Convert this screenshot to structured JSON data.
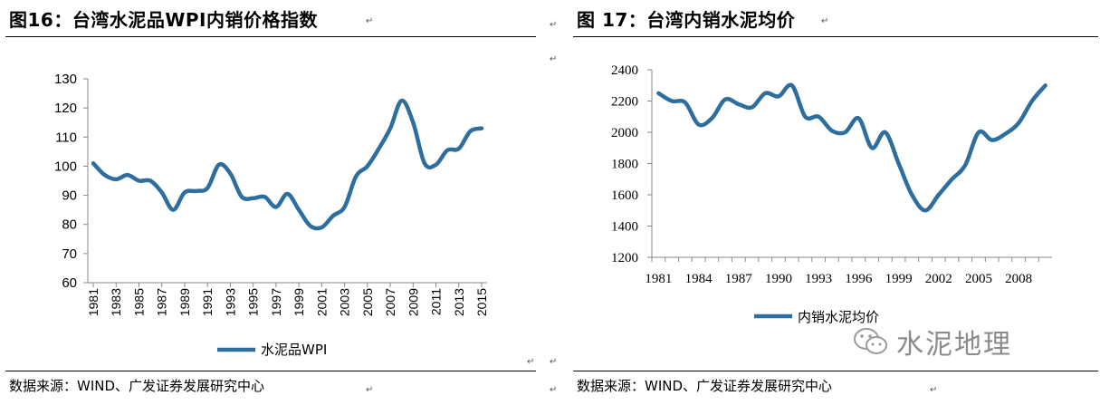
{
  "left_panel": {
    "title": "图16：台湾水泥品WPI内销价格指数",
    "source": "数据来源：WIND、广发证券发展研究中心"
  },
  "right_panel": {
    "title": "图 17：台湾内销水泥均价",
    "source": "数据来源：WIND、广发证券发展研究中心"
  },
  "watermark": {
    "text": "水泥地理",
    "icon": "wechat-icon"
  },
  "chart_data": [
    {
      "type": "line",
      "title": "",
      "xlabel": "",
      "ylabel": "",
      "ylim": [
        60,
        130
      ],
      "yticks": [
        60,
        70,
        80,
        90,
        100,
        110,
        120,
        130
      ],
      "xlim": [
        1981,
        2015
      ],
      "xtick_labels": [
        "1981",
        "1983",
        "1985",
        "1987",
        "1989",
        "1991",
        "1993",
        "1995",
        "1997",
        "1999",
        "2001",
        "2003",
        "2005",
        "2007",
        "2009",
        "2011",
        "2013",
        "2015"
      ],
      "grid": false,
      "legend": "bottom-center",
      "color": "#2e6e9e",
      "series": [
        {
          "name": "水泥品WPI",
          "x": [
            1981,
            1982,
            1983,
            1984,
            1985,
            1986,
            1987,
            1988,
            1989,
            1990,
            1991,
            1992,
            1993,
            1994,
            1995,
            1996,
            1997,
            1998,
            1999,
            2000,
            2001,
            2002,
            2003,
            2004,
            2005,
            2006,
            2007,
            2008,
            2009,
            2010,
            2011,
            2012,
            2013,
            2014,
            2015
          ],
          "values": [
            101,
            97,
            95.5,
            97,
            95,
            95,
            91,
            85,
            91,
            91.5,
            92.5,
            100.5,
            97.5,
            89.5,
            89,
            89.5,
            86,
            90.5,
            85,
            79.5,
            79,
            83,
            86,
            96.5,
            100,
            106,
            113,
            122.5,
            115,
            101,
            100.5,
            105.5,
            106,
            112,
            113
          ]
        }
      ]
    },
    {
      "type": "line",
      "title": "",
      "xlabel": "",
      "ylabel": "",
      "ylim": [
        1200,
        2400
      ],
      "yticks": [
        1200,
        1400,
        1600,
        1800,
        2000,
        2200,
        2400
      ],
      "xlim": [
        1980.5,
        2010.5
      ],
      "xtick_labels": [
        "1981",
        "1984",
        "1987",
        "1990",
        "1993",
        "1996",
        "1999",
        "2002",
        "2005",
        "2008"
      ],
      "grid": false,
      "legend": "bottom-center",
      "color": "#2e6e9e",
      "series": [
        {
          "name": "内销水泥均价",
          "x": [
            1981,
            1982,
            1983,
            1984,
            1985,
            1986,
            1987,
            1988,
            1989,
            1990,
            1991,
            1992,
            1993,
            1994,
            1995,
            1996,
            1997,
            1998,
            1999,
            2000,
            2001,
            2002,
            2003,
            2004,
            2005,
            2006,
            2007,
            2008,
            2009,
            2010
          ],
          "values": [
            2250,
            2200,
            2190,
            2050,
            2090,
            2210,
            2180,
            2160,
            2250,
            2230,
            2300,
            2100,
            2100,
            2010,
            2000,
            2090,
            1900,
            2000,
            1800,
            1600,
            1500,
            1600,
            1700,
            1790,
            2000,
            1950,
            1990,
            2060,
            2200,
            2300
          ]
        }
      ]
    }
  ]
}
